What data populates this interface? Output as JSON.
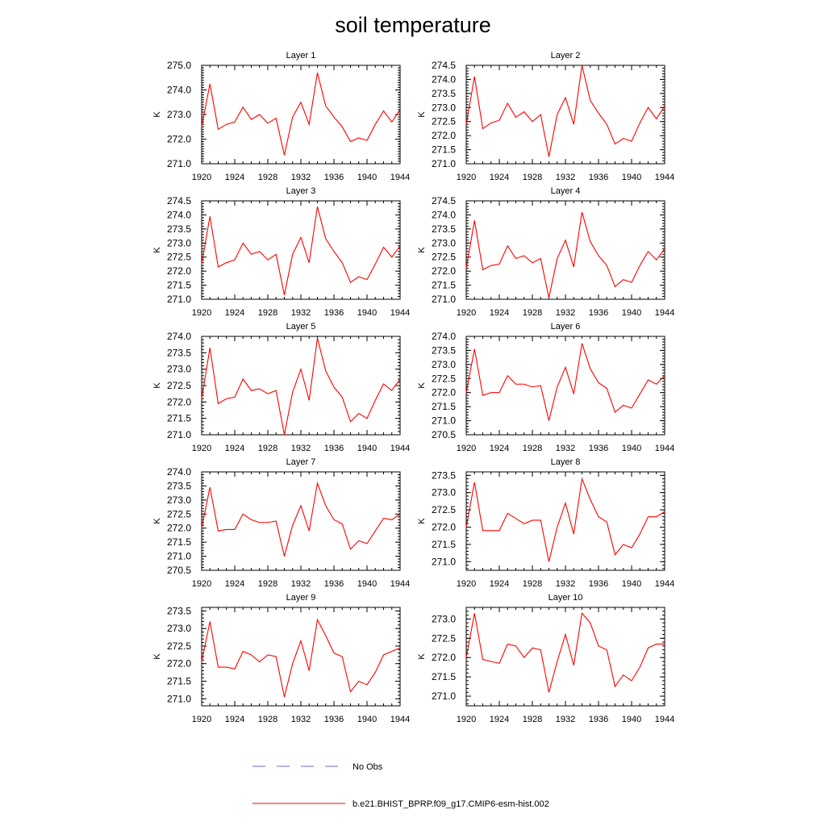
{
  "title": "soil temperature",
  "legend": [
    {
      "label": "No Obs",
      "color": "#6a6ad0",
      "style": "dashed"
    },
    {
      "label": "b.e21.BHIST_BPRP.f09_g17.CMIP6-esm-hist.002",
      "color": "#ff0000",
      "style": "solid"
    }
  ],
  "chart_data": [
    {
      "type": "line",
      "title": "Layer 1",
      "ylabel": "K",
      "x": [
        1920,
        1921,
        1922,
        1923,
        1924,
        1925,
        1926,
        1927,
        1928,
        1929,
        1930,
        1931,
        1932,
        1933,
        1934,
        1935,
        1936,
        1937,
        1938,
        1939,
        1940,
        1941,
        1942,
        1943,
        1944
      ],
      "xticks": [
        1920,
        1924,
        1928,
        1932,
        1936,
        1940,
        1944
      ],
      "xlim": [
        1920,
        1944
      ],
      "ylim": [
        271.0,
        275.0
      ],
      "yticks": [
        271.0,
        272.0,
        273.0,
        274.0,
        275.0
      ],
      "yfmt": 1,
      "series": [
        {
          "color": "#ff0000",
          "values": [
            272.5,
            274.25,
            272.4,
            272.6,
            272.7,
            273.3,
            272.8,
            273.0,
            272.65,
            272.85,
            271.35,
            272.9,
            273.5,
            272.6,
            274.7,
            273.35,
            272.9,
            272.5,
            271.9,
            272.05,
            271.95,
            272.6,
            273.15,
            272.7,
            273.2
          ]
        }
      ]
    },
    {
      "type": "line",
      "title": "Layer 2",
      "ylabel": "K",
      "x": [
        1920,
        1921,
        1922,
        1923,
        1924,
        1925,
        1926,
        1927,
        1928,
        1929,
        1930,
        1931,
        1932,
        1933,
        1934,
        1935,
        1936,
        1937,
        1938,
        1939,
        1940,
        1941,
        1942,
        1943,
        1944
      ],
      "xticks": [
        1920,
        1924,
        1928,
        1932,
        1936,
        1940,
        1944
      ],
      "xlim": [
        1920,
        1944
      ],
      "ylim": [
        271.0,
        274.5
      ],
      "yticks": [
        271.0,
        271.5,
        272.0,
        272.5,
        273.0,
        273.5,
        274.0,
        274.5
      ],
      "yfmt": 1,
      "series": [
        {
          "color": "#ff0000",
          "values": [
            272.4,
            274.1,
            272.25,
            272.45,
            272.55,
            273.15,
            272.65,
            272.85,
            272.5,
            272.75,
            271.25,
            272.75,
            273.35,
            272.4,
            274.5,
            273.25,
            272.8,
            272.4,
            271.7,
            271.9,
            271.8,
            272.45,
            273.0,
            272.6,
            273.05
          ]
        }
      ]
    },
    {
      "type": "line",
      "title": "Layer 3",
      "ylabel": "K",
      "x": [
        1920,
        1921,
        1922,
        1923,
        1924,
        1925,
        1926,
        1927,
        1928,
        1929,
        1930,
        1931,
        1932,
        1933,
        1934,
        1935,
        1936,
        1937,
        1938,
        1939,
        1940,
        1941,
        1942,
        1943,
        1944
      ],
      "xticks": [
        1920,
        1924,
        1928,
        1932,
        1936,
        1940,
        1944
      ],
      "xlim": [
        1920,
        1944
      ],
      "ylim": [
        271.0,
        274.5
      ],
      "yticks": [
        271.0,
        271.5,
        272.0,
        272.5,
        273.0,
        273.5,
        274.0,
        274.5
      ],
      "yfmt": 1,
      "series": [
        {
          "color": "#ff0000",
          "values": [
            272.25,
            273.95,
            272.15,
            272.3,
            272.4,
            273.0,
            272.6,
            272.7,
            272.4,
            272.6,
            271.15,
            272.6,
            273.2,
            272.3,
            274.3,
            273.15,
            272.7,
            272.3,
            271.6,
            271.8,
            271.7,
            272.25,
            272.85,
            272.5,
            272.9
          ]
        }
      ]
    },
    {
      "type": "line",
      "title": "Layer 4",
      "ylabel": "K",
      "x": [
        1920,
        1921,
        1922,
        1923,
        1924,
        1925,
        1926,
        1927,
        1928,
        1929,
        1930,
        1931,
        1932,
        1933,
        1934,
        1935,
        1936,
        1937,
        1938,
        1939,
        1940,
        1941,
        1942,
        1943,
        1944
      ],
      "xticks": [
        1920,
        1924,
        1928,
        1932,
        1936,
        1940,
        1944
      ],
      "xlim": [
        1920,
        1944
      ],
      "ylim": [
        271.0,
        274.5
      ],
      "yticks": [
        271.0,
        271.5,
        272.0,
        272.5,
        273.0,
        273.5,
        274.0,
        274.5
      ],
      "yfmt": 1,
      "series": [
        {
          "color": "#ff0000",
          "values": [
            272.1,
            273.8,
            272.05,
            272.2,
            272.25,
            272.9,
            272.45,
            272.55,
            272.3,
            272.45,
            271.05,
            272.45,
            273.1,
            272.15,
            274.1,
            273.05,
            272.55,
            272.2,
            271.45,
            271.7,
            271.6,
            272.2,
            272.7,
            272.4,
            272.8
          ]
        }
      ]
    },
    {
      "type": "line",
      "title": "Layer 5",
      "ylabel": "K",
      "x": [
        1920,
        1921,
        1922,
        1923,
        1924,
        1925,
        1926,
        1927,
        1928,
        1929,
        1930,
        1931,
        1932,
        1933,
        1934,
        1935,
        1936,
        1937,
        1938,
        1939,
        1940,
        1941,
        1942,
        1943,
        1944
      ],
      "xticks": [
        1920,
        1924,
        1928,
        1932,
        1936,
        1940,
        1944
      ],
      "xlim": [
        1920,
        1944
      ],
      "ylim": [
        271.0,
        274.0
      ],
      "yticks": [
        271.0,
        271.5,
        272.0,
        272.5,
        273.0,
        273.5,
        274.0
      ],
      "yfmt": 1,
      "series": [
        {
          "color": "#ff0000",
          "values": [
            272.1,
            273.65,
            271.95,
            272.1,
            272.15,
            272.7,
            272.35,
            272.4,
            272.25,
            272.35,
            271.0,
            272.3,
            273.0,
            272.05,
            273.95,
            272.95,
            272.45,
            272.15,
            271.4,
            271.65,
            271.5,
            272.05,
            272.55,
            272.35,
            272.7
          ]
        }
      ]
    },
    {
      "type": "line",
      "title": "Layer 6",
      "ylabel": "K",
      "x": [
        1920,
        1921,
        1922,
        1923,
        1924,
        1925,
        1926,
        1927,
        1928,
        1929,
        1930,
        1931,
        1932,
        1933,
        1934,
        1935,
        1936,
        1937,
        1938,
        1939,
        1940,
        1941,
        1942,
        1943,
        1944
      ],
      "xticks": [
        1920,
        1924,
        1928,
        1932,
        1936,
        1940,
        1944
      ],
      "xlim": [
        1920,
        1944
      ],
      "ylim": [
        270.5,
        274.0
      ],
      "yticks": [
        270.5,
        271.0,
        271.5,
        272.0,
        272.5,
        273.0,
        273.5,
        274.0
      ],
      "yfmt": 1,
      "series": [
        {
          "color": "#ff0000",
          "values": [
            272.0,
            273.55,
            271.9,
            272.0,
            272.0,
            272.6,
            272.3,
            272.3,
            272.2,
            272.25,
            271.0,
            272.2,
            272.9,
            271.95,
            273.75,
            272.85,
            272.35,
            272.15,
            271.3,
            271.55,
            271.45,
            271.95,
            272.45,
            272.3,
            272.6
          ]
        }
      ]
    },
    {
      "type": "line",
      "title": "Layer 7",
      "ylabel": "K",
      "x": [
        1920,
        1921,
        1922,
        1923,
        1924,
        1925,
        1926,
        1927,
        1928,
        1929,
        1930,
        1931,
        1932,
        1933,
        1934,
        1935,
        1936,
        1937,
        1938,
        1939,
        1940,
        1941,
        1942,
        1943,
        1944
      ],
      "xticks": [
        1920,
        1924,
        1928,
        1932,
        1936,
        1940,
        1944
      ],
      "xlim": [
        1920,
        1944
      ],
      "ylim": [
        270.5,
        274.0
      ],
      "yticks": [
        270.5,
        271.0,
        271.5,
        272.0,
        272.5,
        273.0,
        273.5,
        274.0
      ],
      "yfmt": 1,
      "series": [
        {
          "color": "#ff0000",
          "values": [
            272.0,
            273.45,
            271.9,
            271.95,
            271.95,
            272.5,
            272.3,
            272.2,
            272.2,
            272.25,
            271.0,
            272.1,
            272.8,
            271.9,
            273.6,
            272.8,
            272.3,
            272.15,
            271.25,
            271.55,
            271.45,
            271.9,
            272.35,
            272.3,
            272.5
          ]
        }
      ]
    },
    {
      "type": "line",
      "title": "Layer 8",
      "ylabel": "K",
      "x": [
        1920,
        1921,
        1922,
        1923,
        1924,
        1925,
        1926,
        1927,
        1928,
        1929,
        1930,
        1931,
        1932,
        1933,
        1934,
        1935,
        1936,
        1937,
        1938,
        1939,
        1940,
        1941,
        1942,
        1943,
        1944
      ],
      "xticks": [
        1920,
        1924,
        1928,
        1932,
        1936,
        1940,
        1944
      ],
      "xlim": [
        1920,
        1944
      ],
      "ylim": [
        270.75,
        273.6
      ],
      "yticks": [
        271.0,
        271.5,
        272.0,
        272.5,
        273.0,
        273.5
      ],
      "yfmt": 1,
      "series": [
        {
          "color": "#ff0000",
          "values": [
            272.0,
            273.3,
            271.9,
            271.9,
            271.9,
            272.4,
            272.25,
            272.1,
            272.2,
            272.2,
            271.0,
            272.0,
            272.7,
            271.8,
            273.4,
            272.8,
            272.3,
            272.15,
            271.2,
            271.5,
            271.4,
            271.8,
            272.3,
            272.3,
            272.45
          ]
        }
      ]
    },
    {
      "type": "line",
      "title": "Layer 9",
      "ylabel": "K",
      "x": [
        1920,
        1921,
        1922,
        1923,
        1924,
        1925,
        1926,
        1927,
        1928,
        1929,
        1930,
        1931,
        1932,
        1933,
        1934,
        1935,
        1936,
        1937,
        1938,
        1939,
        1940,
        1941,
        1942,
        1943,
        1944
      ],
      "xticks": [
        1920,
        1924,
        1928,
        1932,
        1936,
        1940,
        1944
      ],
      "xlim": [
        1920,
        1944
      ],
      "ylim": [
        270.8,
        273.6
      ],
      "yticks": [
        271.0,
        271.5,
        272.0,
        272.5,
        273.0,
        273.5
      ],
      "yfmt": 1,
      "series": [
        {
          "color": "#ff0000",
          "values": [
            272.05,
            273.2,
            271.9,
            271.9,
            271.85,
            272.35,
            272.25,
            272.05,
            272.25,
            272.2,
            271.05,
            272.0,
            272.65,
            271.8,
            273.25,
            272.8,
            272.3,
            272.2,
            271.2,
            271.5,
            271.4,
            271.75,
            272.25,
            272.35,
            272.45
          ]
        }
      ]
    },
    {
      "type": "line",
      "title": "Layer 10",
      "ylabel": "K",
      "x": [
        1920,
        1921,
        1922,
        1923,
        1924,
        1925,
        1926,
        1927,
        1928,
        1929,
        1930,
        1931,
        1932,
        1933,
        1934,
        1935,
        1936,
        1937,
        1938,
        1939,
        1940,
        1941,
        1942,
        1943,
        1944
      ],
      "xticks": [
        1920,
        1924,
        1928,
        1932,
        1936,
        1940,
        1944
      ],
      "xlim": [
        1920,
        1944
      ],
      "ylim": [
        270.75,
        273.3
      ],
      "yticks": [
        271.0,
        271.5,
        272.0,
        272.5,
        273.0
      ],
      "yfmt": 1,
      "series": [
        {
          "color": "#ff0000",
          "values": [
            272.0,
            273.15,
            271.95,
            271.9,
            271.85,
            272.35,
            272.3,
            272.0,
            272.25,
            272.2,
            271.1,
            271.9,
            272.6,
            271.8,
            273.15,
            272.9,
            272.3,
            272.2,
            271.25,
            271.55,
            271.4,
            271.75,
            272.25,
            272.35,
            272.35
          ]
        }
      ]
    }
  ]
}
